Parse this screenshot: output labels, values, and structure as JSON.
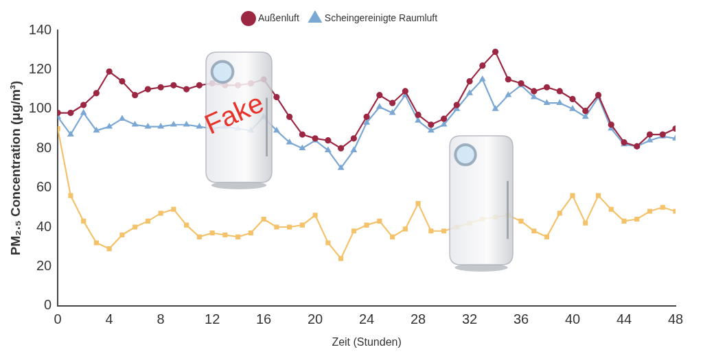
{
  "chart_data": {
    "type": "line",
    "x_label": "Zeit (Stunden)",
    "y_label": "PM₂.₅ Concentration (μg/m³)",
    "x": [
      0,
      1,
      2,
      3,
      4,
      5,
      6,
      7,
      8,
      9,
      10,
      11,
      12,
      13,
      14,
      15,
      16,
      17,
      18,
      19,
      20,
      21,
      22,
      23,
      24,
      25,
      26,
      27,
      28,
      29,
      30,
      31,
      32,
      33,
      34,
      35,
      36,
      37,
      38,
      39,
      40,
      41,
      42,
      43,
      44,
      45,
      46,
      47,
      48
    ],
    "xlim": [
      0,
      48
    ],
    "xticks": [
      0,
      4,
      8,
      12,
      16,
      20,
      24,
      28,
      32,
      36,
      40,
      44,
      48
    ],
    "ylim": [
      0,
      140
    ],
    "yticks": [
      0,
      20,
      40,
      60,
      80,
      100,
      120,
      140
    ],
    "grid": false,
    "legend": "top",
    "annotations": [
      "Fake"
    ],
    "series": [
      {
        "name": "Außenluft",
        "color": "#9b2743",
        "marker": "circle",
        "values": [
          98,
          98,
          102,
          108,
          119,
          114,
          107,
          110,
          111,
          112,
          110,
          112,
          113,
          112,
          112,
          113,
          115,
          106,
          96,
          87,
          85,
          84,
          80,
          85,
          96,
          107,
          103,
          109,
          97,
          92,
          95,
          102,
          114,
          122,
          129,
          115,
          113,
          109,
          111,
          109,
          105,
          99,
          107,
          92,
          83,
          81,
          87,
          87,
          90
        ]
      },
      {
        "name": "Scheingereinigte Raumluft",
        "color": "#7ba7d4",
        "marker": "triangle",
        "values": [
          96,
          87,
          98,
          89,
          91,
          95,
          92,
          91,
          91,
          92,
          92,
          91,
          90,
          91,
          90,
          89,
          96,
          89,
          83,
          80,
          84,
          79,
          70,
          79,
          93,
          101,
          98,
          107,
          94,
          89,
          92,
          100,
          108,
          115,
          100,
          107,
          112,
          106,
          103,
          103,
          100,
          96,
          106,
          90,
          82,
          81,
          84,
          86,
          85
        ]
      },
      {
        "color": "#f4c26a",
        "marker": "square",
        "values": [
          90,
          56,
          43,
          32,
          29,
          36,
          40,
          43,
          47,
          49,
          41,
          35,
          37,
          36,
          35,
          37,
          44,
          40,
          40,
          41,
          46,
          32,
          24,
          38,
          41,
          43,
          35,
          39,
          52,
          38,
          38,
          40,
          42,
          44,
          45,
          46,
          43,
          38,
          35,
          47,
          56,
          42,
          56,
          49,
          43,
          44,
          48,
          50,
          48
        ]
      }
    ]
  }
}
